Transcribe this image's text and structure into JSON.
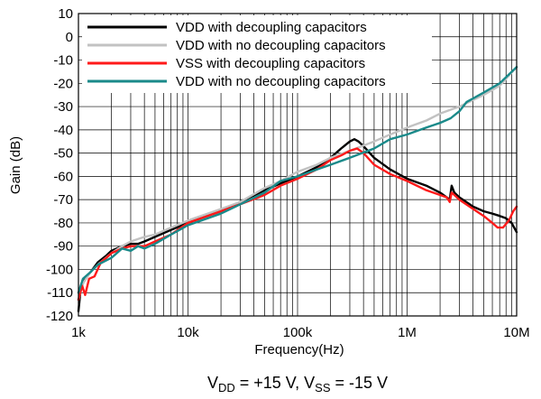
{
  "chart_data": {
    "type": "line",
    "xlabel": "Frequency(Hz)",
    "ylabel": "Gain (dB)",
    "x_scale": "log",
    "xlim": [
      1000,
      10000000
    ],
    "ylim": [
      -120,
      10
    ],
    "x_ticks": [
      {
        "value": 1000,
        "label": "1k"
      },
      {
        "value": 10000,
        "label": "10k"
      },
      {
        "value": 100000,
        "label": "100k"
      },
      {
        "value": 1000000,
        "label": "1M"
      },
      {
        "value": 10000000,
        "label": "10M"
      }
    ],
    "y_ticks": [
      10,
      0,
      -10,
      -20,
      -30,
      -40,
      -50,
      -60,
      -70,
      -80,
      -90,
      -100,
      -110,
      -120
    ],
    "grid": "on",
    "legend_position": "top-left",
    "caption": {
      "parts": [
        {
          "text": "V",
          "sub": false
        },
        {
          "text": "DD",
          "sub": true
        },
        {
          "text": " = +15 V, V",
          "sub": false
        },
        {
          "text": "SS",
          "sub": true
        },
        {
          "text": " = -15 V",
          "sub": false
        }
      ]
    },
    "series": [
      {
        "name": "VDD with decoupling capacitors",
        "color": "#000000",
        "points": [
          [
            1000,
            -118
          ],
          [
            1050,
            -108
          ],
          [
            1150,
            -104
          ],
          [
            1300,
            -101
          ],
          [
            1500,
            -97
          ],
          [
            1800,
            -94
          ],
          [
            2000,
            -92
          ],
          [
            2500,
            -90
          ],
          [
            3000,
            -89
          ],
          [
            3500,
            -89
          ],
          [
            4000,
            -88
          ],
          [
            5000,
            -86
          ],
          [
            7000,
            -83
          ],
          [
            10000,
            -80
          ],
          [
            20000,
            -75
          ],
          [
            30000,
            -71
          ],
          [
            50000,
            -66
          ],
          [
            70000,
            -63
          ],
          [
            100000,
            -60
          ],
          [
            150000,
            -56
          ],
          [
            200000,
            -52
          ],
          [
            250000,
            -48
          ],
          [
            300000,
            -45
          ],
          [
            330000,
            -44
          ],
          [
            360000,
            -45
          ],
          [
            400000,
            -47
          ],
          [
            500000,
            -52
          ],
          [
            700000,
            -57
          ],
          [
            1000000,
            -61
          ],
          [
            1500000,
            -64
          ],
          [
            2000000,
            -67
          ],
          [
            2300000,
            -69
          ],
          [
            2450000,
            -70
          ],
          [
            2550000,
            -64
          ],
          [
            2700000,
            -67
          ],
          [
            3000000,
            -69
          ],
          [
            4000000,
            -73
          ],
          [
            5000000,
            -75
          ],
          [
            6000000,
            -76
          ],
          [
            7000000,
            -77
          ],
          [
            8000000,
            -78
          ],
          [
            9000000,
            -80
          ],
          [
            10000000,
            -84
          ]
        ]
      },
      {
        "name": "VDD with no decoupling capacitors",
        "color": "#c2c2c2",
        "points": [
          [
            1000,
            -113
          ],
          [
            1100,
            -106
          ],
          [
            1300,
            -101
          ],
          [
            1500,
            -98
          ],
          [
            2000,
            -93
          ],
          [
            2500,
            -90
          ],
          [
            3000,
            -88
          ],
          [
            4000,
            -86
          ],
          [
            5000,
            -85
          ],
          [
            7000,
            -82
          ],
          [
            10000,
            -79
          ],
          [
            20000,
            -74
          ],
          [
            30000,
            -71
          ],
          [
            50000,
            -65
          ],
          [
            70000,
            -62
          ],
          [
            100000,
            -58
          ],
          [
            150000,
            -55
          ],
          [
            200000,
            -52
          ],
          [
            300000,
            -49
          ],
          [
            500000,
            -45
          ],
          [
            700000,
            -42
          ],
          [
            1000000,
            -39
          ],
          [
            1500000,
            -36
          ],
          [
            2000000,
            -33
          ],
          [
            3000000,
            -30
          ],
          [
            5000000,
            -25
          ],
          [
            7000000,
            -21
          ],
          [
            10000000,
            -13
          ]
        ]
      },
      {
        "name": "VSS with decoupling capacitors",
        "color": "#ff1a1a",
        "points": [
          [
            1000,
            -113
          ],
          [
            1080,
            -107
          ],
          [
            1150,
            -111
          ],
          [
            1250,
            -104
          ],
          [
            1400,
            -103
          ],
          [
            1600,
            -97
          ],
          [
            1800,
            -95
          ],
          [
            2000,
            -93
          ],
          [
            2500,
            -91
          ],
          [
            3000,
            -90
          ],
          [
            3500,
            -90
          ],
          [
            4000,
            -90
          ],
          [
            5000,
            -88
          ],
          [
            7000,
            -85
          ],
          [
            10000,
            -80
          ],
          [
            20000,
            -75
          ],
          [
            30000,
            -72
          ],
          [
            50000,
            -68
          ],
          [
            70000,
            -64
          ],
          [
            100000,
            -61
          ],
          [
            150000,
            -57
          ],
          [
            200000,
            -53
          ],
          [
            250000,
            -51
          ],
          [
            300000,
            -49
          ],
          [
            350000,
            -48
          ],
          [
            400000,
            -50
          ],
          [
            500000,
            -55
          ],
          [
            700000,
            -59
          ],
          [
            1000000,
            -62
          ],
          [
            1500000,
            -66
          ],
          [
            2000000,
            -68
          ],
          [
            2300000,
            -69
          ],
          [
            2450000,
            -71
          ],
          [
            2550000,
            -67
          ],
          [
            2700000,
            -68
          ],
          [
            3000000,
            -70
          ],
          [
            4000000,
            -74
          ],
          [
            5000000,
            -77
          ],
          [
            6000000,
            -80
          ],
          [
            6700000,
            -82
          ],
          [
            7500000,
            -82
          ],
          [
            8500000,
            -79
          ],
          [
            9300000,
            -75
          ],
          [
            10000000,
            -73
          ]
        ]
      },
      {
        "name": "VDD with no decoupling capacitors",
        "color": "#1a8a8a",
        "points": [
          [
            1000,
            -110
          ],
          [
            1100,
            -104
          ],
          [
            1300,
            -101
          ],
          [
            1500,
            -98
          ],
          [
            2000,
            -95
          ],
          [
            2500,
            -91
          ],
          [
            3000,
            -92
          ],
          [
            3500,
            -90
          ],
          [
            4000,
            -91
          ],
          [
            5000,
            -89
          ],
          [
            7000,
            -85
          ],
          [
            10000,
            -81
          ],
          [
            20000,
            -76
          ],
          [
            30000,
            -72
          ],
          [
            50000,
            -67
          ],
          [
            70000,
            -62
          ],
          [
            100000,
            -60
          ],
          [
            150000,
            -57
          ],
          [
            200000,
            -55
          ],
          [
            300000,
            -52
          ],
          [
            500000,
            -48
          ],
          [
            700000,
            -44
          ],
          [
            1000000,
            -42
          ],
          [
            1500000,
            -39
          ],
          [
            2000000,
            -37
          ],
          [
            2500000,
            -35
          ],
          [
            3000000,
            -32
          ],
          [
            3500000,
            -28
          ],
          [
            5000000,
            -24
          ],
          [
            7000000,
            -20
          ],
          [
            10000000,
            -13
          ]
        ]
      }
    ]
  }
}
